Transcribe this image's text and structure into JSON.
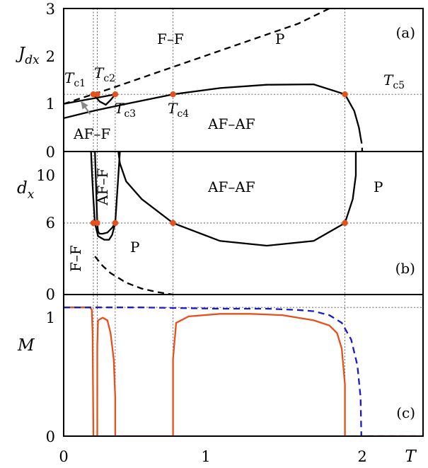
{
  "chart_data": [
    {
      "panel": "(a)",
      "type": "line",
      "ylabel": "J",
      "ylabel_sub": "dx",
      "xlim": [
        0,
        2.3
      ],
      "ylim": [
        0,
        3
      ],
      "yticks": [
        "0",
        "1",
        "2",
        "3"
      ],
      "regions": [
        "F–F",
        "P",
        "AF–AF",
        "AF–F"
      ],
      "transition_labels": [
        {
          "main": "T",
          "sub": "c1"
        },
        {
          "main": "T",
          "sub": "c2"
        },
        {
          "main": "T",
          "sub": "c3"
        },
        {
          "main": "T",
          "sub": "c4"
        },
        {
          "main": "T",
          "sub": "c5"
        }
      ],
      "reference_level": 1.2,
      "transition_points": [
        {
          "x": 0.19,
          "y": 1.2
        },
        {
          "x": 0.215,
          "y": 1.2
        },
        {
          "x": 0.33,
          "y": 1.2
        },
        {
          "x": 0.7,
          "y": 1.2
        },
        {
          "x": 1.8,
          "y": 1.2
        }
      ],
      "series": [
        {
          "style": "dashed",
          "x": [
            0.0,
            0.3,
            0.6,
            0.9,
            1.2,
            1.5,
            1.7
          ],
          "y": [
            1.0,
            1.32,
            1.66,
            2.0,
            2.34,
            2.68,
            3.0
          ]
        },
        {
          "style": "solid",
          "x": [
            0.0,
            0.1,
            0.2,
            0.3,
            0.33
          ],
          "y": [
            1.0,
            1.06,
            1.12,
            1.18,
            1.2
          ]
        },
        {
          "style": "solid",
          "x": [
            0.0,
            0.2,
            0.4,
            0.7,
            1.0,
            1.3,
            1.6,
            1.8
          ],
          "y": [
            0.7,
            0.86,
            1.0,
            1.2,
            1.33,
            1.4,
            1.41,
            1.2
          ]
        },
        {
          "style": "solid",
          "x": [
            0.19,
            0.23,
            0.27,
            0.3,
            0.33
          ],
          "y": [
            1.2,
            1.05,
            0.98,
            1.08,
            1.2
          ]
        },
        {
          "style": "solid",
          "x": [
            1.8,
            1.86,
            1.89,
            1.9
          ],
          "y": [
            1.2,
            0.85,
            0.5,
            0.3
          ]
        },
        {
          "style": "dashed",
          "x": [
            1.9,
            1.91,
            1.91
          ],
          "y": [
            0.3,
            0.12,
            0.0
          ]
        }
      ],
      "pointer": {
        "from": {
          "x": 0.17,
          "y": 0.78
        },
        "to": {
          "x": 0.11,
          "y": 1.06
        }
      }
    },
    {
      "panel": "(b)",
      "type": "line",
      "ylabel": "d",
      "ylabel_sub": "x",
      "xlim": [
        0,
        2.3
      ],
      "ylim": [
        0,
        12
      ],
      "yticks": [
        "0",
        "6",
        "10"
      ],
      "regions": [
        "AF–AF",
        "P",
        "P",
        "F–F",
        "AF–F"
      ],
      "reference_level": 6,
      "transition_points": [
        {
          "x": 0.19,
          "y": 6
        },
        {
          "x": 0.215,
          "y": 6
        },
        {
          "x": 0.33,
          "y": 6
        },
        {
          "x": 0.7,
          "y": 6
        },
        {
          "x": 1.8,
          "y": 6
        }
      ],
      "series": [
        {
          "style": "solid",
          "x": [
            0.175,
            0.182,
            0.19,
            0.2,
            0.22,
            0.26,
            0.29,
            0.31,
            0.33,
            0.34,
            0.35,
            0.36
          ],
          "y": [
            12.0,
            10.0,
            8.0,
            6.0,
            4.9,
            4.6,
            4.6,
            5.0,
            6.0,
            8.0,
            10.0,
            12.0
          ]
        },
        {
          "style": "solid",
          "x": [
            0.2,
            0.205,
            0.21,
            0.215,
            0.22,
            0.23,
            0.25,
            0.28,
            0.31,
            0.33
          ],
          "y": [
            12.0,
            10.0,
            8.0,
            6.0,
            5.3,
            5.1,
            5.1,
            5.2,
            5.6,
            6.0
          ]
        },
        {
          "style": "solid",
          "x": [
            0.35,
            0.36,
            0.4,
            0.5,
            0.7,
            1.0,
            1.3,
            1.6,
            1.8,
            1.85,
            1.87,
            1.87
          ],
          "y": [
            12.0,
            11.0,
            9.5,
            8.0,
            6.0,
            4.5,
            4.1,
            4.5,
            6.0,
            8.0,
            10.0,
            12.0
          ]
        },
        {
          "style": "dashed",
          "x": [
            0.2,
            0.25,
            0.3,
            0.4,
            0.5,
            0.6,
            0.7
          ],
          "y": [
            3.2,
            2.4,
            1.8,
            1.0,
            0.5,
            0.2,
            0.0
          ]
        }
      ]
    },
    {
      "panel": "(c)",
      "type": "line",
      "xlabel": "T",
      "ylabel": "M",
      "xlim": [
        0,
        2.3
      ],
      "ylim": [
        0,
        1.1
      ],
      "xticks": [
        "0",
        "1",
        "2"
      ],
      "yticks": [
        "0",
        "1"
      ],
      "reference_level": 1,
      "series": [
        {
          "style": "solid",
          "color": "#e8501a",
          "x": [
            0.0,
            0.17,
            0.18,
            0.185,
            0.19,
            0.215,
            0.215,
            0.22,
            0.25,
            0.28,
            0.3,
            0.32,
            0.33,
            0.33,
            0.7,
            0.7,
            0.72,
            0.8,
            1.0,
            1.2,
            1.4,
            1.6,
            1.7,
            1.75,
            1.78,
            1.8,
            1.8,
            2.3
          ],
          "y": [
            1.0,
            1.0,
            0.98,
            0.8,
            0.0,
            0.0,
            0.7,
            0.9,
            0.92,
            0.9,
            0.8,
            0.6,
            0.3,
            0.0,
            0.0,
            0.6,
            0.88,
            0.93,
            0.95,
            0.95,
            0.94,
            0.9,
            0.86,
            0.8,
            0.68,
            0.4,
            0.0,
            0.0
          ]
        },
        {
          "style": "dashed",
          "color": "#1a1acc",
          "x": [
            0.0,
            0.5,
            1.0,
            1.3,
            1.5,
            1.6,
            1.7,
            1.78,
            1.84,
            1.88,
            1.9,
            1.905,
            2.3
          ],
          "y": [
            1.0,
            1.0,
            0.99,
            0.99,
            0.98,
            0.97,
            0.94,
            0.88,
            0.75,
            0.55,
            0.3,
            0.0,
            0.0
          ]
        }
      ]
    }
  ],
  "colors": {
    "marker": "#e8501a",
    "magnetization": "#e8501a",
    "reference": "#1a1acc"
  }
}
